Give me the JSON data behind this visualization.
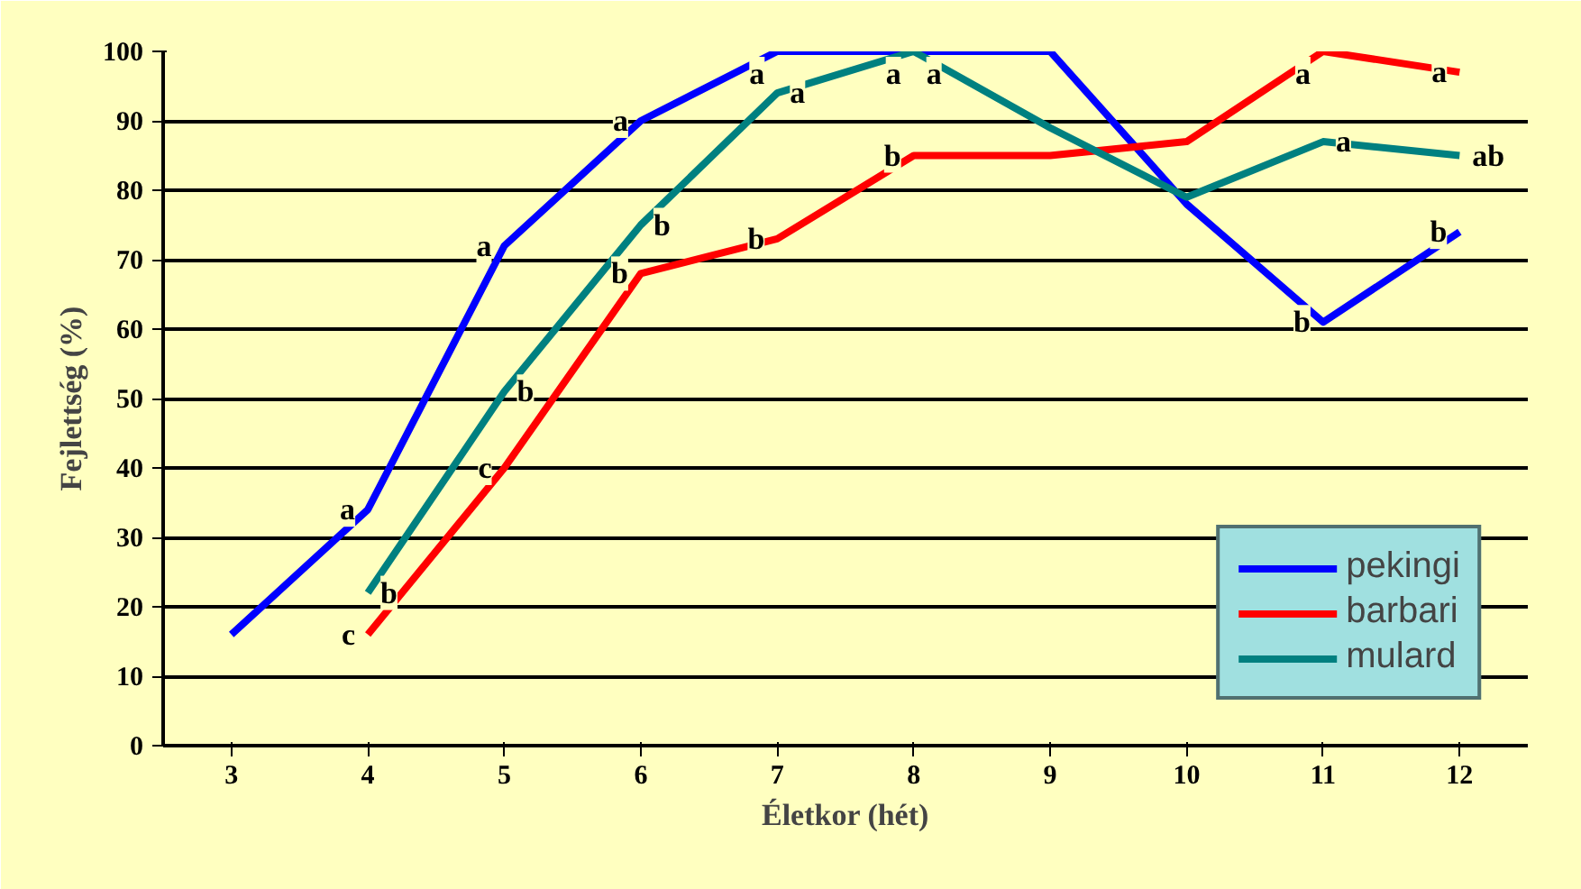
{
  "chart_data": {
    "type": "line",
    "xlabel": "Életkor (hét)",
    "ylabel": "Fejlettség (%)",
    "x": [
      3,
      4,
      5,
      6,
      7,
      8,
      9,
      10,
      11,
      12
    ],
    "series": [
      {
        "name": "pekingi",
        "color": "#0000ff",
        "values": [
          16,
          34,
          72,
          90,
          100,
          100,
          100,
          78,
          61,
          74
        ]
      },
      {
        "name": "barbari",
        "color": "#ff0000",
        "values": [
          null,
          16,
          40,
          68,
          73,
          85,
          85,
          87,
          100,
          97
        ]
      },
      {
        "name": "mulard",
        "color": "#008080",
        "values": [
          null,
          22,
          51,
          75,
          94,
          100,
          89,
          79,
          87,
          85
        ]
      }
    ],
    "xlim": [
      2.5,
      12.5
    ],
    "xticks": [
      3,
      4,
      5,
      6,
      7,
      8,
      9,
      10,
      11,
      12
    ],
    "ylim": [
      0,
      100
    ],
    "yticks": [
      0,
      10,
      20,
      30,
      40,
      50,
      60,
      70,
      80,
      90,
      100
    ],
    "grid": "y",
    "legend": "bottom right",
    "marker": "none",
    "line_style": "solid",
    "annotations": [
      {
        "text": "a",
        "x": 4,
        "y": 34
      },
      {
        "text": "b",
        "x": 4,
        "y": 22
      },
      {
        "text": "c",
        "x": 4,
        "y": 16
      },
      {
        "text": "a",
        "x": 5,
        "y": 72
      },
      {
        "text": "b",
        "x": 5,
        "y": 51
      },
      {
        "text": "c",
        "x": 5,
        "y": 40
      },
      {
        "text": "a",
        "x": 6,
        "y": 90
      },
      {
        "text": "b",
        "x": 6,
        "y": 75
      },
      {
        "text": "b",
        "x": 6,
        "y": 68
      },
      {
        "text": "a",
        "x": 7,
        "y": 100
      },
      {
        "text": "a",
        "x": 7,
        "y": 94
      },
      {
        "text": "b",
        "x": 7,
        "y": 73
      },
      {
        "text": "a",
        "x": 8,
        "y": 100
      },
      {
        "text": "a",
        "x": 8,
        "y": 100
      },
      {
        "text": "b",
        "x": 8,
        "y": 85
      },
      {
        "text": "a",
        "x": 11,
        "y": 100
      },
      {
        "text": "a",
        "x": 11,
        "y": 87
      },
      {
        "text": "b",
        "x": 11,
        "y": 61
      },
      {
        "text": "a",
        "x": 12,
        "y": 97
      },
      {
        "text": "ab",
        "x": 12,
        "y": 85
      },
      {
        "text": "b",
        "x": 12,
        "y": 74
      }
    ]
  }
}
